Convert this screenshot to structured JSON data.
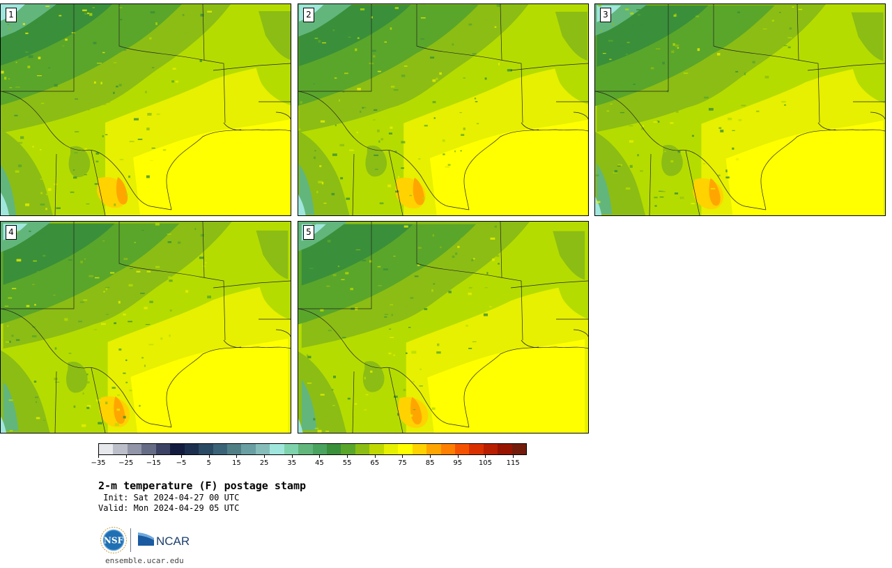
{
  "panels": [
    {
      "label": "1"
    },
    {
      "label": "2"
    },
    {
      "label": "3"
    },
    {
      "label": "4"
    },
    {
      "label": "5"
    }
  ],
  "colorbar": {
    "colors": [
      "#e6e8ec",
      "#bcbfca",
      "#9295a8",
      "#676c86",
      "#3b4264",
      "#131c3f",
      "#1c2f4e",
      "#2a4a63",
      "#3b6378",
      "#508086",
      "#6a9fa3",
      "#86bdba",
      "#a0e6dc",
      "#7ed3ac",
      "#62b67c",
      "#4aa35e",
      "#3a8f3a",
      "#5aa62a",
      "#8cbd14",
      "#bfd800",
      "#e6f000",
      "#ffff00",
      "#ffd200",
      "#ffa500",
      "#ff7f00",
      "#f55200",
      "#d93000",
      "#b81e00",
      "#961400",
      "#731c0c"
    ],
    "tick_values": [
      -35,
      -25,
      -15,
      -5,
      5,
      15,
      25,
      35,
      45,
      55,
      65,
      75,
      85,
      95,
      105,
      115
    ],
    "tick_labels": [
      "−35",
      "−25",
      "−15",
      "−5",
      "5",
      "15",
      "25",
      "35",
      "45",
      "55",
      "65",
      "75",
      "85",
      "95",
      "105",
      "115"
    ]
  },
  "title": "2-m temperature (F) postage stamp",
  "init": " Init: Sat 2024-04-27 00 UTC",
  "valid": "Valid: Mon 2024-04-29 05 UTC",
  "url": "ensemble.ucar.edu",
  "logos": {
    "nsf": "NSF",
    "ncar": "NCAR"
  }
}
